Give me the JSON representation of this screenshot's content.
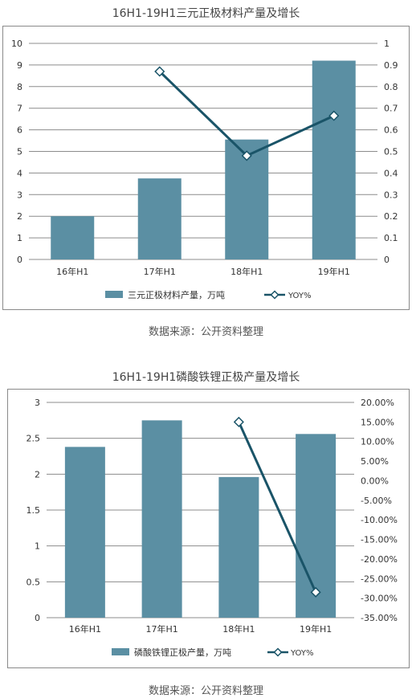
{
  "chart_data": [
    {
      "type": "bar",
      "title": "16H1-19H1三元正极材料产量及增长",
      "categories": [
        "16年H1",
        "17年H1",
        "18年H1",
        "19年H1"
      ],
      "series": [
        {
          "name": "三元正极材料产量，万吨",
          "type": "bar",
          "axis": "left",
          "values": [
            2.0,
            3.75,
            5.55,
            9.2
          ]
        },
        {
          "name": "YOY%",
          "type": "line",
          "axis": "right",
          "values": [
            null,
            0.87,
            0.48,
            0.665
          ]
        }
      ],
      "yticks_left": [
        "0",
        "1",
        "2",
        "3",
        "4",
        "5",
        "6",
        "7",
        "8",
        "9",
        "10"
      ],
      "yticks_right": [
        "0",
        "0.1",
        "0.2",
        "0.3",
        "0.4",
        "0.5",
        "0.6",
        "0.7",
        "0.8",
        "0.9",
        "1"
      ],
      "ylim_left": [
        0,
        10
      ],
      "ylim_right": [
        0,
        1
      ],
      "grid": true,
      "legend_position": "bottom",
      "colors": {
        "bar": "#5b8fa3",
        "line": "#1a5468"
      },
      "source": "数据来源：公开资料整理"
    },
    {
      "type": "bar",
      "title": "16H1-19H1磷酸铁锂正极产量及增长",
      "categories": [
        "16年H1",
        "17年H1",
        "18年H1",
        "19年H1"
      ],
      "series": [
        {
          "name": "磷酸铁锂正极产量，万吨",
          "type": "bar",
          "axis": "left",
          "values": [
            2.38,
            2.75,
            1.96,
            2.56
          ]
        },
        {
          "name": "YOY%",
          "type": "line",
          "axis": "right",
          "values": [
            null,
            null,
            15.0,
            -28.5
          ]
        }
      ],
      "yticks_left": [
        "0",
        "0.5",
        "1",
        "1.5",
        "2",
        "2.5",
        "3"
      ],
      "yticks_right": [
        "-35.00%",
        "-30.00%",
        "-25.00%",
        "-20.00%",
        "-15.00%",
        "-10.00%",
        "-5.00%",
        "0.00%",
        "5.00%",
        "10.00%",
        "15.00%",
        "20.00%"
      ],
      "ylim_left": [
        0,
        3
      ],
      "ylim_right": [
        -35,
        20
      ],
      "grid": true,
      "legend_position": "bottom",
      "colors": {
        "bar": "#5b8fa3",
        "line": "#1a5468"
      },
      "source": "数据来源：公开资料整理"
    }
  ]
}
